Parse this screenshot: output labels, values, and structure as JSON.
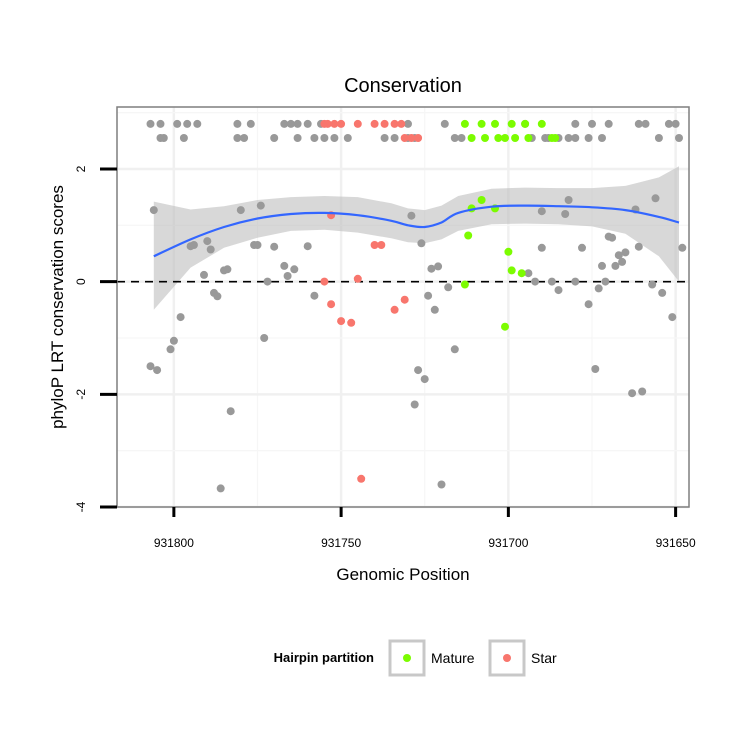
{
  "chart_data": {
    "type": "scatter",
    "title": "Conservation",
    "xlabel": "Genomic Position",
    "ylabel": "phyloP LRT conservation scores",
    "x_reversed": true,
    "xlim": [
      931817,
      931646
    ],
    "ylim": [
      -4,
      3.1
    ],
    "x_ticks": [
      931800,
      931750,
      931700,
      931650
    ],
    "x_tick_labels": [
      "931800",
      "931750",
      "931700",
      "931650"
    ],
    "y_ticks": [
      -4,
      -2,
      0,
      2
    ],
    "y_tick_labels": [
      "-4",
      "-2",
      "0",
      "2"
    ],
    "grid": true,
    "reference_line": {
      "y": 0,
      "style": "dashed"
    },
    "colors": {
      "Other": "#999999",
      "Mature": "#7CFC00",
      "Star": "#F8766D",
      "smooth": "#3366FF",
      "ribbon": "#BEBEBE"
    },
    "legend": {
      "title": "Hairpin partition",
      "placement": "bottom",
      "entries": [
        {
          "label": "Mature",
          "group": "Mature"
        },
        {
          "label": "Star",
          "group": "Star"
        }
      ]
    },
    "points": [
      {
        "x": 931807,
        "y": 2.8,
        "g": "Other"
      },
      {
        "x": 931804,
        "y": 2.55,
        "g": "Other"
      },
      {
        "x": 931804,
        "y": 2.8,
        "g": "Other"
      },
      {
        "x": 931803,
        "y": 2.55,
        "g": "Other"
      },
      {
        "x": 931799,
        "y": 2.8,
        "g": "Other"
      },
      {
        "x": 931797,
        "y": 2.55,
        "g": "Other"
      },
      {
        "x": 931796,
        "y": 2.8,
        "g": "Other"
      },
      {
        "x": 931793,
        "y": 2.8,
        "g": "Other"
      },
      {
        "x": 931781,
        "y": 2.55,
        "g": "Other"
      },
      {
        "x": 931781,
        "y": 2.8,
        "g": "Other"
      },
      {
        "x": 931779,
        "y": 2.55,
        "g": "Other"
      },
      {
        "x": 931777,
        "y": 2.8,
        "g": "Other"
      },
      {
        "x": 931770,
        "y": 2.55,
        "g": "Other"
      },
      {
        "x": 931767,
        "y": 2.8,
        "g": "Other"
      },
      {
        "x": 931765,
        "y": 2.8,
        "g": "Other"
      },
      {
        "x": 931763,
        "y": 2.8,
        "g": "Other"
      },
      {
        "x": 931763,
        "y": 2.55,
        "g": "Other"
      },
      {
        "x": 931760,
        "y": 2.8,
        "g": "Other"
      },
      {
        "x": 931758,
        "y": 2.55,
        "g": "Other"
      },
      {
        "x": 931756,
        "y": 2.8,
        "g": "Other"
      },
      {
        "x": 931755,
        "y": 2.55,
        "g": "Other"
      },
      {
        "x": 931752,
        "y": 2.55,
        "g": "Other"
      },
      {
        "x": 931748,
        "y": 2.55,
        "g": "Other"
      },
      {
        "x": 931737,
        "y": 2.55,
        "g": "Other"
      },
      {
        "x": 931734,
        "y": 2.55,
        "g": "Other"
      },
      {
        "x": 931730,
        "y": 2.8,
        "g": "Other"
      },
      {
        "x": 931730,
        "y": 2.55,
        "g": "Other"
      },
      {
        "x": 931728,
        "y": 2.55,
        "g": "Other"
      },
      {
        "x": 931719,
        "y": 2.8,
        "g": "Other"
      },
      {
        "x": 931716,
        "y": 2.55,
        "g": "Other"
      },
      {
        "x": 931714,
        "y": 2.55,
        "g": "Other"
      },
      {
        "x": 931695,
        "y": 2.8,
        "g": "Other"
      },
      {
        "x": 931693,
        "y": 2.55,
        "g": "Other"
      },
      {
        "x": 931689,
        "y": 2.55,
        "g": "Other"
      },
      {
        "x": 931688,
        "y": 2.55,
        "g": "Other"
      },
      {
        "x": 931685,
        "y": 2.55,
        "g": "Other"
      },
      {
        "x": 931682,
        "y": 2.55,
        "g": "Other"
      },
      {
        "x": 931680,
        "y": 2.8,
        "g": "Other"
      },
      {
        "x": 931680,
        "y": 2.55,
        "g": "Other"
      },
      {
        "x": 931676,
        "y": 2.55,
        "g": "Other"
      },
      {
        "x": 931675,
        "y": 2.8,
        "g": "Other"
      },
      {
        "x": 931672,
        "y": 2.55,
        "g": "Other"
      },
      {
        "x": 931670,
        "y": 2.8,
        "g": "Other"
      },
      {
        "x": 931661,
        "y": 2.8,
        "g": "Other"
      },
      {
        "x": 931659,
        "y": 2.8,
        "g": "Other"
      },
      {
        "x": 931655,
        "y": 2.55,
        "g": "Other"
      },
      {
        "x": 931652,
        "y": 2.8,
        "g": "Other"
      },
      {
        "x": 931650,
        "y": 2.8,
        "g": "Other"
      },
      {
        "x": 931649,
        "y": 2.55,
        "g": "Other"
      },
      {
        "x": 931755,
        "y": 2.8,
        "g": "Star"
      },
      {
        "x": 931754,
        "y": 2.8,
        "g": "Star"
      },
      {
        "x": 931752,
        "y": 2.8,
        "g": "Star"
      },
      {
        "x": 931750,
        "y": 2.8,
        "g": "Star"
      },
      {
        "x": 931745,
        "y": 2.8,
        "g": "Star"
      },
      {
        "x": 931740,
        "y": 2.8,
        "g": "Star"
      },
      {
        "x": 931737,
        "y": 2.8,
        "g": "Star"
      },
      {
        "x": 931734,
        "y": 2.8,
        "g": "Star"
      },
      {
        "x": 931731,
        "y": 2.55,
        "g": "Star"
      },
      {
        "x": 931732,
        "y": 2.8,
        "g": "Star"
      },
      {
        "x": 931729,
        "y": 2.55,
        "g": "Star"
      },
      {
        "x": 931727,
        "y": 2.55,
        "g": "Star"
      },
      {
        "x": 931713,
        "y": 2.8,
        "g": "Mature"
      },
      {
        "x": 931711,
        "y": 2.55,
        "g": "Mature"
      },
      {
        "x": 931708,
        "y": 2.8,
        "g": "Mature"
      },
      {
        "x": 931707,
        "y": 2.55,
        "g": "Mature"
      },
      {
        "x": 931704,
        "y": 2.8,
        "g": "Mature"
      },
      {
        "x": 931703,
        "y": 2.55,
        "g": "Mature"
      },
      {
        "x": 931701,
        "y": 2.55,
        "g": "Mature"
      },
      {
        "x": 931699,
        "y": 2.8,
        "g": "Mature"
      },
      {
        "x": 931698,
        "y": 2.55,
        "g": "Mature"
      },
      {
        "x": 931695,
        "y": 2.8,
        "g": "Mature"
      },
      {
        "x": 931694,
        "y": 2.55,
        "g": "Mature"
      },
      {
        "x": 931690,
        "y": 2.8,
        "g": "Mature"
      },
      {
        "x": 931687,
        "y": 2.55,
        "g": "Mature"
      },
      {
        "x": 931686,
        "y": 2.55,
        "g": "Mature"
      },
      {
        "x": 931806,
        "y": 1.27,
        "g": "Other"
      },
      {
        "x": 931807,
        "y": -1.5,
        "g": "Other"
      },
      {
        "x": 931805,
        "y": -1.57,
        "g": "Other"
      },
      {
        "x": 931801,
        "y": -1.2,
        "g": "Other"
      },
      {
        "x": 931800,
        "y": -1.05,
        "g": "Other"
      },
      {
        "x": 931798,
        "y": -0.63,
        "g": "Other"
      },
      {
        "x": 931795,
        "y": 0.63,
        "g": "Other"
      },
      {
        "x": 931794,
        "y": 0.65,
        "g": "Other"
      },
      {
        "x": 931791,
        "y": 0.12,
        "g": "Other"
      },
      {
        "x": 931790,
        "y": 0.72,
        "g": "Other"
      },
      {
        "x": 931789,
        "y": 0.57,
        "g": "Other"
      },
      {
        "x": 931788,
        "y": -0.2,
        "g": "Other"
      },
      {
        "x": 931787,
        "y": -0.26,
        "g": "Other"
      },
      {
        "x": 931786,
        "y": -3.67,
        "g": "Other"
      },
      {
        "x": 931785,
        "y": 0.2,
        "g": "Other"
      },
      {
        "x": 931784,
        "y": 0.22,
        "g": "Other"
      },
      {
        "x": 931783,
        "y": -2.3,
        "g": "Other"
      },
      {
        "x": 931780,
        "y": 1.27,
        "g": "Other"
      },
      {
        "x": 931776,
        "y": 0.65,
        "g": "Other"
      },
      {
        "x": 931775,
        "y": 0.65,
        "g": "Other"
      },
      {
        "x": 931774,
        "y": 1.35,
        "g": "Other"
      },
      {
        "x": 931773,
        "y": -1.0,
        "g": "Other"
      },
      {
        "x": 931772,
        "y": 0.0,
        "g": "Other"
      },
      {
        "x": 931770,
        "y": 0.62,
        "g": "Other"
      },
      {
        "x": 931767,
        "y": 0.28,
        "g": "Other"
      },
      {
        "x": 931766,
        "y": 0.1,
        "g": "Other"
      },
      {
        "x": 931764,
        "y": 0.22,
        "g": "Other"
      },
      {
        "x": 931760,
        "y": 0.63,
        "g": "Other"
      },
      {
        "x": 931758,
        "y": -0.25,
        "g": "Other"
      },
      {
        "x": 931729,
        "y": 1.17,
        "g": "Other"
      },
      {
        "x": 931728,
        "y": -2.18,
        "g": "Other"
      },
      {
        "x": 931727,
        "y": -1.57,
        "g": "Other"
      },
      {
        "x": 931726,
        "y": 0.68,
        "g": "Other"
      },
      {
        "x": 931725,
        "y": -1.73,
        "g": "Other"
      },
      {
        "x": 931724,
        "y": -0.25,
        "g": "Other"
      },
      {
        "x": 931723,
        "y": 0.23,
        "g": "Other"
      },
      {
        "x": 931722,
        "y": -0.5,
        "g": "Other"
      },
      {
        "x": 931721,
        "y": 0.27,
        "g": "Other"
      },
      {
        "x": 931720,
        "y": -3.6,
        "g": "Other"
      },
      {
        "x": 931718,
        "y": -0.1,
        "g": "Other"
      },
      {
        "x": 931716,
        "y": -1.2,
        "g": "Other"
      },
      {
        "x": 931694,
        "y": 0.15,
        "g": "Other"
      },
      {
        "x": 931692,
        "y": 0.0,
        "g": "Other"
      },
      {
        "x": 931690,
        "y": 0.6,
        "g": "Other"
      },
      {
        "x": 931690,
        "y": 1.25,
        "g": "Other"
      },
      {
        "x": 931687,
        "y": 0.0,
        "g": "Other"
      },
      {
        "x": 931685,
        "y": -0.15,
        "g": "Other"
      },
      {
        "x": 931683,
        "y": 1.2,
        "g": "Other"
      },
      {
        "x": 931682,
        "y": 1.45,
        "g": "Other"
      },
      {
        "x": 931680,
        "y": 0.0,
        "g": "Other"
      },
      {
        "x": 931678,
        "y": 0.6,
        "g": "Other"
      },
      {
        "x": 931676,
        "y": -0.4,
        "g": "Other"
      },
      {
        "x": 931674,
        "y": -1.55,
        "g": "Other"
      },
      {
        "x": 931673,
        "y": -0.12,
        "g": "Other"
      },
      {
        "x": 931672,
        "y": 0.28,
        "g": "Other"
      },
      {
        "x": 931671,
        "y": 0.0,
        "g": "Other"
      },
      {
        "x": 931670,
        "y": 0.8,
        "g": "Other"
      },
      {
        "x": 931669,
        "y": 0.78,
        "g": "Other"
      },
      {
        "x": 931668,
        "y": 0.28,
        "g": "Other"
      },
      {
        "x": 931667,
        "y": 0.47,
        "g": "Other"
      },
      {
        "x": 931666,
        "y": 0.35,
        "g": "Other"
      },
      {
        "x": 931665,
        "y": 0.52,
        "g": "Other"
      },
      {
        "x": 931663,
        "y": -1.98,
        "g": "Other"
      },
      {
        "x": 931662,
        "y": 1.28,
        "g": "Other"
      },
      {
        "x": 931661,
        "y": 0.62,
        "g": "Other"
      },
      {
        "x": 931660,
        "y": -1.95,
        "g": "Other"
      },
      {
        "x": 931657,
        "y": -0.05,
        "g": "Other"
      },
      {
        "x": 931656,
        "y": 1.48,
        "g": "Other"
      },
      {
        "x": 931654,
        "y": -0.2,
        "g": "Other"
      },
      {
        "x": 931651,
        "y": -0.63,
        "g": "Other"
      },
      {
        "x": 931648,
        "y": 0.6,
        "g": "Other"
      },
      {
        "x": 931753,
        "y": 1.18,
        "g": "Star"
      },
      {
        "x": 931755,
        "y": 0.0,
        "g": "Star"
      },
      {
        "x": 931753,
        "y": -0.4,
        "g": "Star"
      },
      {
        "x": 931750,
        "y": -0.7,
        "g": "Star"
      },
      {
        "x": 931747,
        "y": -0.73,
        "g": "Star"
      },
      {
        "x": 931745,
        "y": 0.05,
        "g": "Star"
      },
      {
        "x": 931744,
        "y": -3.5,
        "g": "Star"
      },
      {
        "x": 931740,
        "y": 0.65,
        "g": "Star"
      },
      {
        "x": 931738,
        "y": 0.65,
        "g": "Star"
      },
      {
        "x": 931734,
        "y": -0.5,
        "g": "Star"
      },
      {
        "x": 931731,
        "y": -0.32,
        "g": "Star"
      },
      {
        "x": 931711,
        "y": 1.3,
        "g": "Mature"
      },
      {
        "x": 931713,
        "y": -0.05,
        "g": "Mature"
      },
      {
        "x": 931712,
        "y": 0.82,
        "g": "Mature"
      },
      {
        "x": 931708,
        "y": 1.45,
        "g": "Mature"
      },
      {
        "x": 931704,
        "y": 1.3,
        "g": "Mature"
      },
      {
        "x": 931701,
        "y": -0.8,
        "g": "Mature"
      },
      {
        "x": 931700,
        "y": 0.53,
        "g": "Mature"
      },
      {
        "x": 931699,
        "y": 0.2,
        "g": "Mature"
      },
      {
        "x": 931696,
        "y": 0.15,
        "g": "Mature"
      }
    ],
    "smooth": {
      "x": [
        931806,
        931795,
        931785,
        931775,
        931765,
        931755,
        931745,
        931735,
        931730,
        931725,
        931720,
        931715,
        931705,
        931695,
        931685,
        931675,
        931665,
        931655,
        931649
      ],
      "y": [
        0.45,
        0.75,
        0.97,
        1.12,
        1.2,
        1.22,
        1.18,
        1.08,
        1.0,
        0.97,
        1.05,
        1.22,
        1.33,
        1.35,
        1.34,
        1.32,
        1.27,
        1.15,
        1.05
      ],
      "lower": [
        -0.5,
        0.25,
        0.6,
        0.78,
        0.9,
        0.92,
        0.87,
        0.77,
        0.7,
        0.68,
        0.75,
        0.9,
        1.02,
        1.03,
        1.02,
        0.98,
        0.85,
        0.45,
        0.0
      ],
      "upper": [
        1.42,
        1.28,
        1.34,
        1.45,
        1.5,
        1.52,
        1.5,
        1.39,
        1.3,
        1.27,
        1.35,
        1.52,
        1.65,
        1.67,
        1.66,
        1.66,
        1.7,
        1.85,
        2.05
      ]
    }
  }
}
